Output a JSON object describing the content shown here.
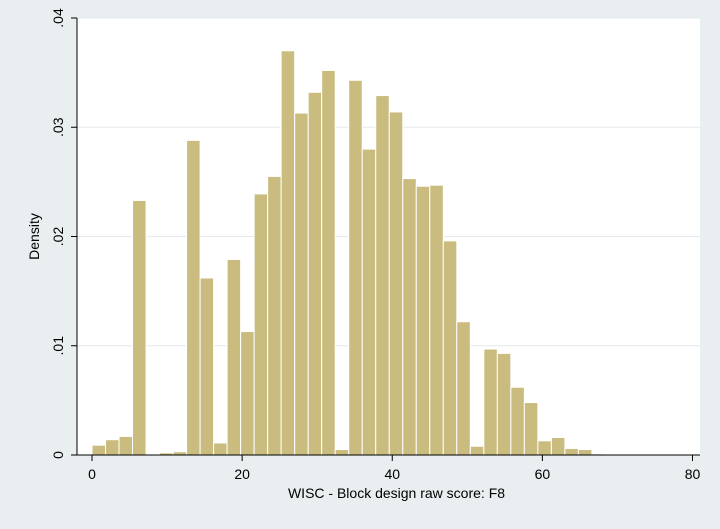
{
  "chart_data": {
    "type": "bar",
    "title": "",
    "xlabel": "WISC - Block design raw score: F8",
    "ylabel": "Density",
    "xlim": [
      -2,
      81
    ],
    "ylim": [
      0,
      0.04
    ],
    "xticks": [
      0,
      20,
      40,
      60,
      80
    ],
    "xtick_labels": [
      "0",
      "20",
      "40",
      "60",
      "80"
    ],
    "yticks": [
      0,
      0.01,
      0.02,
      0.03,
      0.04
    ],
    "ytick_labels": [
      "0",
      ".01",
      ".02",
      ".03",
      ".04"
    ],
    "grid": "horizontal",
    "bin_width": 1.8,
    "bin_start": 0,
    "bar_color": "#c9bc7e",
    "bar_edge_color": "#ffffff",
    "plot_background": "#ffffff",
    "page_background": "#e9eef1",
    "gridline_color": "#e6eaed",
    "series": [
      {
        "values": [
          0.0009,
          0.0014,
          0.0017,
          0.0233,
          0.0,
          0.0002,
          0.0003,
          0.0288,
          0.0162,
          0.0011,
          0.0179,
          0.0113,
          0.0239,
          0.0255,
          0.037,
          0.0313,
          0.0332,
          0.0352,
          0.0005,
          0.0343,
          0.028,
          0.0329,
          0.0314,
          0.0253,
          0.0246,
          0.0247,
          0.0196,
          0.0122,
          0.0008,
          0.0097,
          0.0093,
          0.0062,
          0.0048,
          0.0013,
          0.0016,
          0.0006,
          0.0005,
          0.0001
        ]
      }
    ]
  }
}
